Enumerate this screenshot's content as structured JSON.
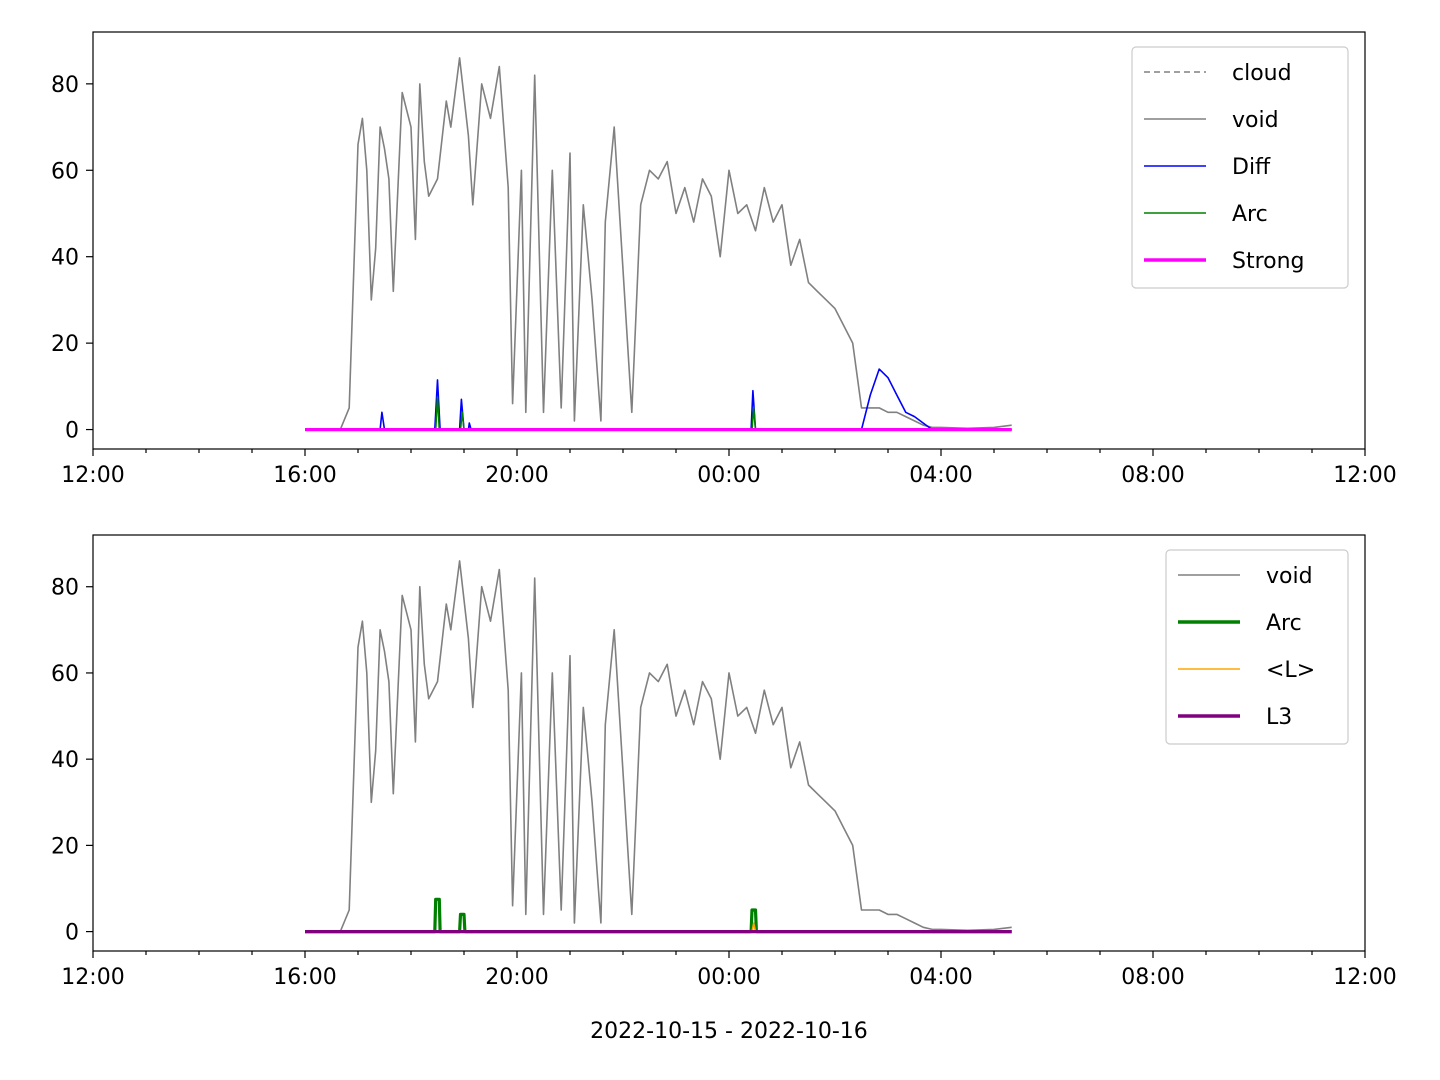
{
  "chart_data": [
    {
      "type": "line",
      "xlim": [
        "2022-10-15 12:00",
        "2022-10-16 12:00"
      ],
      "ylim": [
        -4.5,
        92
      ],
      "x_ticks": [
        "12:00",
        "16:00",
        "20:00",
        "00:00",
        "04:00",
        "08:00",
        "12:00"
      ],
      "y_ticks": [
        "0",
        "20",
        "40",
        "60",
        "80"
      ],
      "xlabel": "",
      "grid": false,
      "legend_position": "top-right",
      "legend": [
        {
          "name": "cloud",
          "color": "#808080",
          "style": "dashed"
        },
        {
          "name": "void",
          "color": "#808080",
          "style": "solid"
        },
        {
          "name": "Diff",
          "color": "#0000ff",
          "style": "solid"
        },
        {
          "name": "Arc",
          "color": "#008000",
          "style": "solid"
        },
        {
          "name": "Strong",
          "color": "#ff00ff",
          "style": "solid-thick"
        }
      ],
      "series": [
        {
          "name": "void",
          "color": "#808080",
          "x": [
            "2022-10-15 16:00",
            "2022-10-15 16:40",
            "2022-10-15 16:50",
            "2022-10-15 17:00",
            "2022-10-15 17:05",
            "2022-10-15 17:10",
            "2022-10-15 17:15",
            "2022-10-15 17:20",
            "2022-10-15 17:25",
            "2022-10-15 17:30",
            "2022-10-15 17:35",
            "2022-10-15 17:40",
            "2022-10-15 17:50",
            "2022-10-15 18:00",
            "2022-10-15 18:05",
            "2022-10-15 18:10",
            "2022-10-15 18:15",
            "2022-10-15 18:20",
            "2022-10-15 18:30",
            "2022-10-15 18:40",
            "2022-10-15 18:45",
            "2022-10-15 18:55",
            "2022-10-15 19:05",
            "2022-10-15 19:10",
            "2022-10-15 19:20",
            "2022-10-15 19:30",
            "2022-10-15 19:40",
            "2022-10-15 19:50",
            "2022-10-15 19:55",
            "2022-10-15 20:05",
            "2022-10-15 20:10",
            "2022-10-15 20:20",
            "2022-10-15 20:30",
            "2022-10-15 20:40",
            "2022-10-15 20:50",
            "2022-10-15 21:00",
            "2022-10-15 21:05",
            "2022-10-15 21:15",
            "2022-10-15 21:25",
            "2022-10-15 21:35",
            "2022-10-15 21:40",
            "2022-10-15 21:50",
            "2022-10-15 22:10",
            "2022-10-15 22:20",
            "2022-10-15 22:30",
            "2022-10-15 22:40",
            "2022-10-15 22:50",
            "2022-10-15 23:00",
            "2022-10-15 23:10",
            "2022-10-15 23:20",
            "2022-10-15 23:30",
            "2022-10-15 23:40",
            "2022-10-15 23:50",
            "2022-10-16 00:00",
            "2022-10-16 00:10",
            "2022-10-16 00:20",
            "2022-10-16 00:30",
            "2022-10-16 00:40",
            "2022-10-16 00:50",
            "2022-10-16 01:00",
            "2022-10-16 01:10",
            "2022-10-16 01:20",
            "2022-10-16 01:30",
            "2022-10-16 01:40",
            "2022-10-16 01:50",
            "2022-10-16 02:00",
            "2022-10-16 02:10",
            "2022-10-16 02:20",
            "2022-10-16 02:30",
            "2022-10-16 02:40",
            "2022-10-16 02:50",
            "2022-10-16 03:00",
            "2022-10-16 03:10",
            "2022-10-16 03:20",
            "2022-10-16 03:30",
            "2022-10-16 03:40",
            "2022-10-16 03:50",
            "2022-10-16 04:00",
            "2022-10-16 04:30",
            "2022-10-16 05:00",
            "2022-10-16 05:20"
          ],
          "y": [
            0,
            0,
            5,
            66,
            72,
            60,
            30,
            42,
            70,
            65,
            58,
            32,
            78,
            70,
            44,
            80,
            62,
            54,
            58,
            76,
            70,
            86,
            68,
            52,
            80,
            72,
            84,
            56,
            6,
            60,
            4,
            82,
            4,
            60,
            5,
            64,
            2,
            52,
            30,
            2,
            48,
            70,
            4,
            52,
            60,
            58,
            62,
            50,
            56,
            48,
            58,
            54,
            40,
            60,
            50,
            52,
            46,
            56,
            48,
            52,
            38,
            44,
            34,
            32,
            30,
            28,
            24,
            20,
            5,
            5,
            5,
            4,
            4,
            3,
            2,
            1,
            0.5,
            0.5,
            0.3,
            0.5,
            1
          ]
        },
        {
          "name": "Diff",
          "color": "#0000ff",
          "x": [
            "2022-10-15 16:00",
            "2022-10-15 17:25",
            "2022-10-15 17:27",
            "2022-10-15 17:30",
            "2022-10-15 18:27",
            "2022-10-15 18:30",
            "2022-10-15 18:33",
            "2022-10-15 18:55",
            "2022-10-15 18:57",
            "2022-10-15 19:00",
            "2022-10-15 19:05",
            "2022-10-15 19:06",
            "2022-10-15 19:08",
            "2022-10-16 00:25",
            "2022-10-16 00:27",
            "2022-10-16 00:30",
            "2022-10-16 02:30",
            "2022-10-16 02:40",
            "2022-10-16 02:50",
            "2022-10-16 03:00",
            "2022-10-16 03:10",
            "2022-10-16 03:20",
            "2022-10-16 03:30",
            "2022-10-16 03:40",
            "2022-10-16 03:50",
            "2022-10-16 05:20"
          ],
          "y": [
            0,
            0,
            4,
            0,
            0,
            11.5,
            0,
            0,
            7,
            0,
            0,
            1.5,
            0,
            0,
            9,
            0,
            0,
            8,
            14,
            12,
            8,
            4,
            3,
            1.5,
            0,
            0
          ]
        },
        {
          "name": "Arc",
          "color": "#008000",
          "x": [
            "2022-10-15 16:00",
            "2022-10-15 18:28",
            "2022-10-15 18:30",
            "2022-10-15 18:32",
            "2022-10-15 18:56",
            "2022-10-15 18:58",
            "2022-10-15 19:00",
            "2022-10-16 00:26",
            "2022-10-16 00:28",
            "2022-10-16 00:30",
            "2022-10-16 05:20"
          ],
          "y": [
            0,
            0,
            7.5,
            0,
            0,
            4,
            0,
            0,
            5,
            0,
            0
          ]
        },
        {
          "name": "Strong",
          "color": "#ff00ff",
          "x": [
            "2022-10-15 16:00",
            "2022-10-16 05:20"
          ],
          "y": [
            0,
            0
          ]
        }
      ]
    },
    {
      "type": "line",
      "xlim": [
        "2022-10-15 12:00",
        "2022-10-16 12:00"
      ],
      "ylim": [
        -4.5,
        92
      ],
      "x_ticks": [
        "12:00",
        "16:00",
        "20:00",
        "00:00",
        "04:00",
        "08:00",
        "12:00"
      ],
      "y_ticks": [
        "0",
        "20",
        "40",
        "60",
        "80"
      ],
      "xlabel": "2022-10-15 - 2022-10-16",
      "grid": false,
      "legend_position": "top-right",
      "legend": [
        {
          "name": "void",
          "color": "#808080",
          "style": "solid"
        },
        {
          "name": "Arc",
          "color": "#008000",
          "style": "solid-thick"
        },
        {
          "name": "<L>",
          "color": "#ffa500",
          "style": "solid"
        },
        {
          "name": "L3",
          "color": "#800080",
          "style": "solid-thick"
        }
      ],
      "series": [
        {
          "name": "void",
          "color": "#808080",
          "x": [
            "2022-10-15 16:00",
            "2022-10-15 16:40",
            "2022-10-15 16:50",
            "2022-10-15 17:00",
            "2022-10-15 17:05",
            "2022-10-15 17:10",
            "2022-10-15 17:15",
            "2022-10-15 17:20",
            "2022-10-15 17:25",
            "2022-10-15 17:30",
            "2022-10-15 17:35",
            "2022-10-15 17:40",
            "2022-10-15 17:50",
            "2022-10-15 18:00",
            "2022-10-15 18:05",
            "2022-10-15 18:10",
            "2022-10-15 18:15",
            "2022-10-15 18:20",
            "2022-10-15 18:30",
            "2022-10-15 18:40",
            "2022-10-15 18:45",
            "2022-10-15 18:55",
            "2022-10-15 19:05",
            "2022-10-15 19:10",
            "2022-10-15 19:20",
            "2022-10-15 19:30",
            "2022-10-15 19:40",
            "2022-10-15 19:50",
            "2022-10-15 19:55",
            "2022-10-15 20:05",
            "2022-10-15 20:10",
            "2022-10-15 20:20",
            "2022-10-15 20:30",
            "2022-10-15 20:40",
            "2022-10-15 20:50",
            "2022-10-15 21:00",
            "2022-10-15 21:05",
            "2022-10-15 21:15",
            "2022-10-15 21:25",
            "2022-10-15 21:35",
            "2022-10-15 21:40",
            "2022-10-15 21:50",
            "2022-10-15 22:10",
            "2022-10-15 22:20",
            "2022-10-15 22:30",
            "2022-10-15 22:40",
            "2022-10-15 22:50",
            "2022-10-15 23:00",
            "2022-10-15 23:10",
            "2022-10-15 23:20",
            "2022-10-15 23:30",
            "2022-10-15 23:40",
            "2022-10-15 23:50",
            "2022-10-16 00:00",
            "2022-10-16 00:10",
            "2022-10-16 00:20",
            "2022-10-16 00:30",
            "2022-10-16 00:40",
            "2022-10-16 00:50",
            "2022-10-16 01:00",
            "2022-10-16 01:10",
            "2022-10-16 01:20",
            "2022-10-16 01:30",
            "2022-10-16 01:40",
            "2022-10-16 01:50",
            "2022-10-16 02:00",
            "2022-10-16 02:10",
            "2022-10-16 02:20",
            "2022-10-16 02:30",
            "2022-10-16 02:40",
            "2022-10-16 02:50",
            "2022-10-16 03:00",
            "2022-10-16 03:10",
            "2022-10-16 03:20",
            "2022-10-16 03:30",
            "2022-10-16 03:40",
            "2022-10-16 03:50",
            "2022-10-16 04:00",
            "2022-10-16 04:30",
            "2022-10-16 05:00",
            "2022-10-16 05:20"
          ],
          "y": [
            0,
            0,
            5,
            66,
            72,
            60,
            30,
            42,
            70,
            65,
            58,
            32,
            78,
            70,
            44,
            80,
            62,
            54,
            58,
            76,
            70,
            86,
            68,
            52,
            80,
            72,
            84,
            56,
            6,
            60,
            4,
            82,
            4,
            60,
            5,
            64,
            2,
            52,
            30,
            2,
            48,
            70,
            4,
            52,
            60,
            58,
            62,
            50,
            56,
            48,
            58,
            54,
            40,
            60,
            50,
            52,
            46,
            56,
            48,
            52,
            38,
            44,
            34,
            32,
            30,
            28,
            24,
            20,
            5,
            5,
            5,
            4,
            4,
            3,
            2,
            1,
            0.5,
            0.5,
            0.3,
            0.5,
            1
          ]
        },
        {
          "name": "Arc",
          "color": "#008000",
          "x": [
            "2022-10-15 16:00",
            "2022-10-15 18:27",
            "2022-10-15 18:28",
            "2022-10-15 18:32",
            "2022-10-15 18:33",
            "2022-10-15 18:55",
            "2022-10-15 18:56",
            "2022-10-15 19:00",
            "2022-10-15 19:01",
            "2022-10-16 00:25",
            "2022-10-16 00:26",
            "2022-10-16 00:30",
            "2022-10-16 00:31",
            "2022-10-16 05:20"
          ],
          "y": [
            0,
            0,
            7.5,
            7.5,
            0,
            0,
            4,
            4,
            0,
            0,
            5,
            5,
            0,
            0
          ]
        },
        {
          "name": "<L>",
          "color": "#ffa500",
          "x": [
            "2022-10-15 16:00",
            "2022-10-16 00:26",
            "2022-10-16 00:28",
            "2022-10-16 00:30",
            "2022-10-16 05:20"
          ],
          "y": [
            0,
            0,
            2,
            0,
            0
          ]
        },
        {
          "name": "L3",
          "color": "#800080",
          "x": [
            "2022-10-15 16:00",
            "2022-10-16 05:20"
          ],
          "y": [
            0,
            0
          ]
        }
      ]
    }
  ]
}
